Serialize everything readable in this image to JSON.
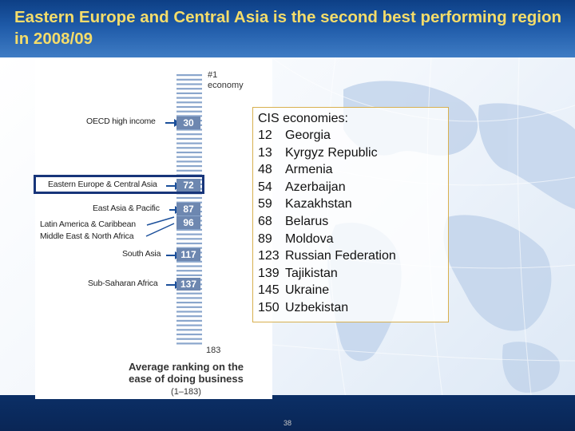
{
  "slide": {
    "title": "Eastern Europe and Central Asia is the second best performing region in 2008/09",
    "page_number": "38"
  },
  "chart": {
    "top_label_line1": "#1",
    "top_label_line2": "economy",
    "bottom_label": "183",
    "axis_title": "Average ranking on the ease of doing business",
    "axis_range": "(1–183)",
    "regions": [
      {
        "name": "OECD high income",
        "rank": "30"
      },
      {
        "name": "Eastern Europe & Central Asia",
        "rank": "72",
        "highlighted": true
      },
      {
        "name": "East Asia & Pacific",
        "rank": "87"
      },
      {
        "name": "Latin America & Caribbean",
        "rank": "96"
      },
      {
        "name": "Middle East & North Africa",
        "rank": "96"
      },
      {
        "name": "South Asia",
        "rank": "117"
      },
      {
        "name": "Sub-Saharan Africa",
        "rank": "137"
      }
    ]
  },
  "cis": {
    "title": "CIS economies:",
    "rows": [
      {
        "rank": "12",
        "name": "Georgia"
      },
      {
        "rank": "13",
        "name": "Kyrgyz Republic"
      },
      {
        "rank": "48",
        "name": "Armenia"
      },
      {
        "rank": "54",
        "name": "Azerbaijan"
      },
      {
        "rank": "59",
        "name": "Kazakhstan"
      },
      {
        "rank": "68",
        "name": "Belarus"
      },
      {
        "rank": "89",
        "name": "Moldova"
      },
      {
        "rank": "123",
        "name": "Russian Federation"
      },
      {
        "rank": "139",
        "name": "Tajikistan"
      },
      {
        "rank": "145",
        "name": "Ukraine"
      },
      {
        "rank": "150",
        "name": "Uzbekistan"
      }
    ]
  },
  "colors": {
    "header": "#1e5aa8",
    "title": "#f4dc6a",
    "badge": "#6d87b0",
    "arrow": "#1b4f9a",
    "highlight_border": "#17357a",
    "cis_border": "#d8b04f"
  }
}
